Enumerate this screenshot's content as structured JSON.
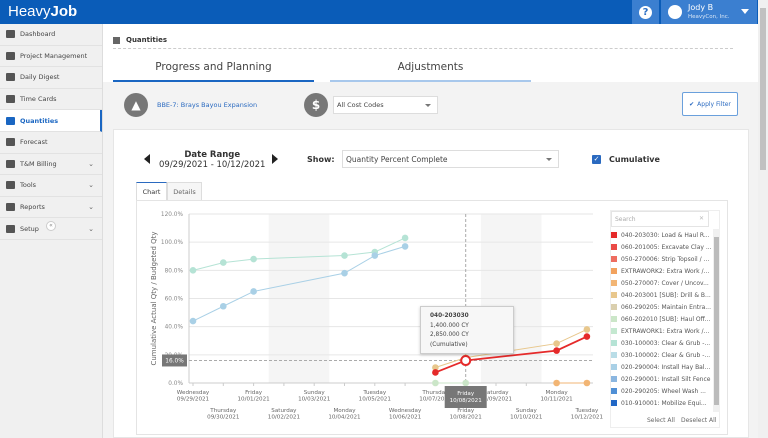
{
  "app": {
    "logo_light": "Heavy",
    "logo_bold": "Job"
  },
  "header": {
    "help_icon": "question-circle-icon",
    "user_name": "Jody B",
    "user_company": "HeavyCon, Inc."
  },
  "sidebar": {
    "items": [
      {
        "label": "Dashboard",
        "icon": "dashboard-icon"
      },
      {
        "label": "Project Management",
        "icon": "briefcase-icon"
      },
      {
        "label": "Daily Digest",
        "icon": "newspaper-icon"
      },
      {
        "label": "Time Cards",
        "icon": "clock-icon"
      },
      {
        "label": "Quantities",
        "icon": "calculator-icon",
        "active": true
      },
      {
        "label": "Forecast",
        "icon": "line-chart-icon"
      },
      {
        "label": "T&M Billing",
        "icon": "money-icon",
        "expandable": true
      },
      {
        "label": "Tools",
        "icon": "wrench-icon",
        "expandable": true
      },
      {
        "label": "Reports",
        "icon": "bar-chart-icon",
        "expandable": true
      },
      {
        "label": "Setup",
        "icon": "gear-icon",
        "expandable": true
      }
    ]
  },
  "page": {
    "breadcrumb": "Quantities",
    "tabs": [
      {
        "label": "Progress and Planning",
        "active": true
      },
      {
        "label": "Adjustments"
      }
    ]
  },
  "filters": {
    "job": "BBE-7: Brays Bayou Expansion",
    "cost_codes": "All Cost Codes",
    "apply": "Apply Filter"
  },
  "controls": {
    "date_range_label": "Date Range",
    "date_range": "09/29/2021 - 10/12/2021",
    "show_label": "Show:",
    "show_value": "Quantity Percent Complete",
    "cumulative_label": "Cumulative",
    "cumulative_checked": true,
    "chart_tabs": [
      "Chart",
      "Details"
    ]
  },
  "tooltip": {
    "title": "040-203030",
    "line1": "1,400.000 CY",
    "line2": "2,850.000 CY (Cumulative)",
    "crosshair_y": "16.0%",
    "crosshair_x_day": "Friday",
    "crosshair_x_date": "10/08/2021"
  },
  "legend": {
    "search_placeholder": "Search",
    "select_all": "Select All",
    "deselect_all": "Deselect All",
    "items": [
      {
        "label": "040-203030: Load & Haul R...",
        "color": "#e52a2a"
      },
      {
        "label": "060-201005: Excavate Clay ...",
        "color": "#ea4a46"
      },
      {
        "label": "050-270006: Strip Topsoil / ...",
        "color": "#ee6d60"
      },
      {
        "label": "EXTRAWORK2: Extra Work /...",
        "color": "#f2a25e"
      },
      {
        "label": "050-270007: Cover / Uncov...",
        "color": "#f2b574"
      },
      {
        "label": "040-203001 [SUB]: Drill & B...",
        "color": "#e8c78c"
      },
      {
        "label": "060-290205: Maintain Entra...",
        "color": "#dacfae"
      },
      {
        "label": "060-202010 [SUB]: Haul Off...",
        "color": "#cbe6c8"
      },
      {
        "label": "EXTRAWORK1: Extra Work /...",
        "color": "#c4e8d0"
      },
      {
        "label": "030-100003: Clear & Grub -...",
        "color": "#b5e3d5"
      },
      {
        "label": "030-100002: Clear & Grub -...",
        "color": "#b9dde7"
      },
      {
        "label": "020-290004: Install Hay Bal...",
        "color": "#a9d0e6"
      },
      {
        "label": "020-290001: Install Silt Fence",
        "color": "#8bb6e0"
      },
      {
        "label": "020-290205: Wheel Wash ...",
        "color": "#4f8fd5"
      },
      {
        "label": "010-910001: Mobilize Equi...",
        "color": "#2167c5"
      }
    ]
  },
  "chart_data": {
    "type": "line",
    "ylabel": "Cumulative Actual Qty / Budgeted Qty",
    "ylim": [
      0,
      120
    ],
    "yticks": [
      "0.0%",
      "20.0%",
      "40.0%",
      "60.0%",
      "80.0%",
      "100.0%",
      "120.0%"
    ],
    "grid": true,
    "weekend_bands": [
      [
        "10/02/2021",
        "10/03/2021"
      ],
      [
        "10/09/2021",
        "10/10/2021"
      ]
    ],
    "x": [
      {
        "day": "Wednesday",
        "date": "09/29/2021"
      },
      {
        "day": "Thursday",
        "date": "09/30/2021"
      },
      {
        "day": "Friday",
        "date": "10/01/2021"
      },
      {
        "day": "Saturday",
        "date": "10/02/2021"
      },
      {
        "day": "Sunday",
        "date": "10/03/2021"
      },
      {
        "day": "Monday",
        "date": "10/04/2021"
      },
      {
        "day": "Tuesday",
        "date": "10/05/2021"
      },
      {
        "day": "Wednesday",
        "date": "10/06/2021"
      },
      {
        "day": "Thursday",
        "date": "10/07/2021"
      },
      {
        "day": "Friday",
        "date": "10/08/2021"
      },
      {
        "day": "Saturday",
        "date": "10/09/2021"
      },
      {
        "day": "Sunday",
        "date": "10/10/2021"
      },
      {
        "day": "Monday",
        "date": "10/11/2021"
      },
      {
        "day": "Tuesday",
        "date": "10/12/2021"
      }
    ],
    "series": [
      {
        "color": "#b5e3d5",
        "points": [
          [
            0,
            80
          ],
          [
            1,
            85.5
          ],
          [
            2,
            88
          ],
          [
            5,
            90.5
          ],
          [
            6,
            93
          ],
          [
            7,
            103
          ]
        ]
      },
      {
        "color": "#a9d0e6",
        "points": [
          [
            0,
            44
          ],
          [
            1,
            54.5
          ],
          [
            2,
            65
          ],
          [
            5,
            78
          ],
          [
            6,
            90.5
          ],
          [
            7,
            97
          ]
        ]
      },
      {
        "color": "#cbe6c8",
        "points": [
          [
            8,
            0
          ],
          [
            9,
            0
          ]
        ]
      },
      {
        "color": "#e8c78c",
        "points": [
          [
            8,
            11
          ],
          [
            9,
            18
          ],
          [
            12,
            28
          ],
          [
            13,
            38
          ]
        ]
      },
      {
        "color": "#f2b574",
        "points": [
          [
            12,
            0
          ],
          [
            13,
            0
          ]
        ]
      },
      {
        "color": "#e52a2a",
        "points": [
          [
            8,
            7.5
          ],
          [
            9,
            16
          ],
          [
            12,
            23
          ],
          [
            13,
            33
          ]
        ],
        "highlight_index": 1
      }
    ]
  }
}
